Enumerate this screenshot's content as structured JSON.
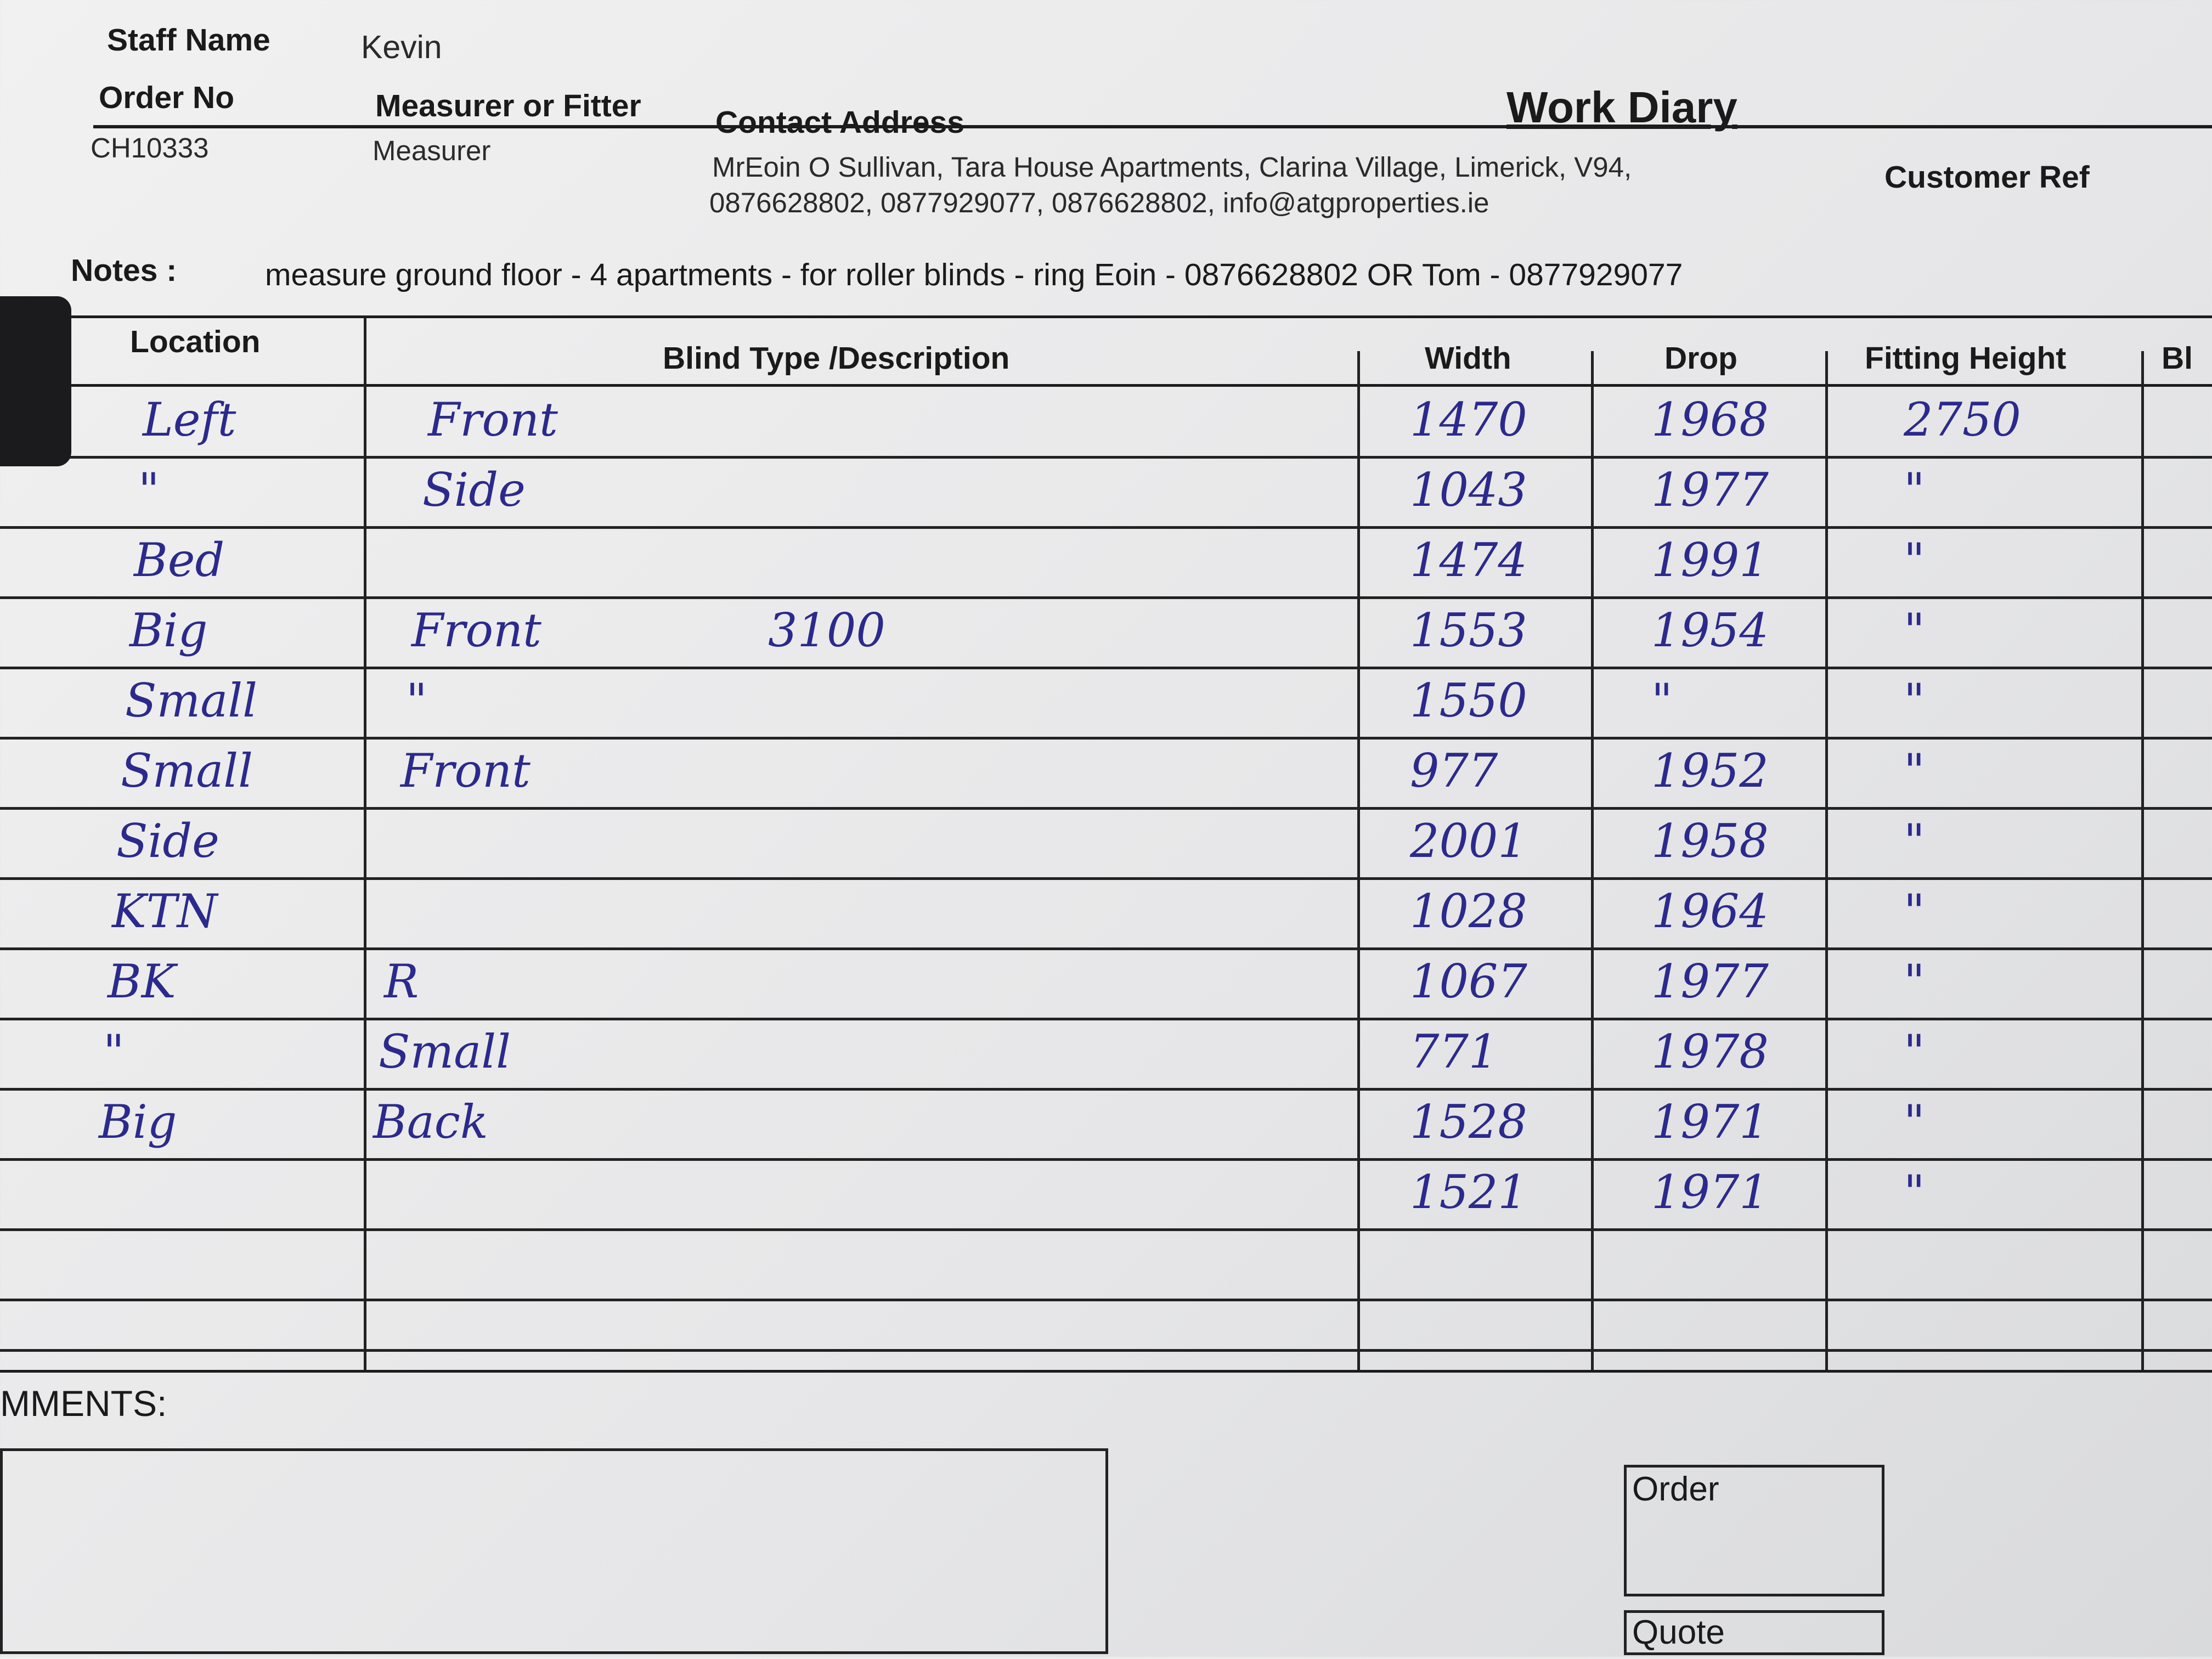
{
  "form": {
    "title": "Work Diary",
    "staff_name_label": "Staff Name",
    "staff_name": "Kevin",
    "order_no_label": "Order No",
    "order_no": "CH10333",
    "role_label": "Measurer or Fitter",
    "role": "Measurer",
    "contact_label": "Contact Address",
    "contact_line1": "MrEoin O Sullivan, Tara House Apartments, Clarina Village, Limerick, V94,",
    "contact_line2": "0876628802, 0877929077, 0876628802, info@atgproperties.ie",
    "customer_ref_label": "Customer Ref",
    "notes_label": "Notes :",
    "notes": "measure ground floor - 4 apartments - for roller blinds - ring Eoin - 0876628802 OR Tom - 0877929077"
  },
  "table": {
    "headers": [
      "Location",
      "Blind Type /Description",
      "Width",
      "Drop",
      "Fitting Height",
      "Bl"
    ],
    "rows": [
      {
        "location": "Left",
        "description": "Front",
        "note": "",
        "width": "1470",
        "drop": "1968",
        "height": "2750"
      },
      {
        "location": "\"",
        "description": "Side",
        "note": "",
        "width": "1043",
        "drop": "1977",
        "height": "\""
      },
      {
        "location": "Bed",
        "description": "",
        "note": "",
        "width": "1474",
        "drop": "1991",
        "height": "\""
      },
      {
        "location": "Big",
        "description": "Front",
        "note": "3100",
        "width": "1553",
        "drop": "1954",
        "height": "\""
      },
      {
        "location": "Small",
        "description": "\"",
        "note": "",
        "width": "1550",
        "drop": "\"",
        "height": "\""
      },
      {
        "location": "Small",
        "description": "Front",
        "note": "",
        "width": "977",
        "drop": "1952",
        "height": "\""
      },
      {
        "location": "Side",
        "description": "",
        "note": "",
        "width": "2001",
        "drop": "1958",
        "height": "\""
      },
      {
        "location": "KTN",
        "description": "",
        "note": "",
        "width": "1028",
        "drop": "1964",
        "height": "\""
      },
      {
        "location": "BK",
        "description": "R",
        "note": "",
        "width": "1067",
        "drop": "1977",
        "height": "\""
      },
      {
        "location": "\"",
        "description": "Small",
        "note": "",
        "width": "771",
        "drop": "1978",
        "height": "\""
      },
      {
        "location": "Big",
        "description": "Back",
        "note": "",
        "width": "1528",
        "drop": "1971",
        "height": "\""
      },
      {
        "location": "",
        "description": "",
        "note": "",
        "width": "1521",
        "drop": "1971",
        "height": "\""
      }
    ]
  },
  "footer": {
    "comments_label": "MMENTS:",
    "order_label": "Order",
    "quote_label": "Quote"
  },
  "colors": {
    "ink": "#2b2a8c",
    "paper": "#ececec"
  }
}
